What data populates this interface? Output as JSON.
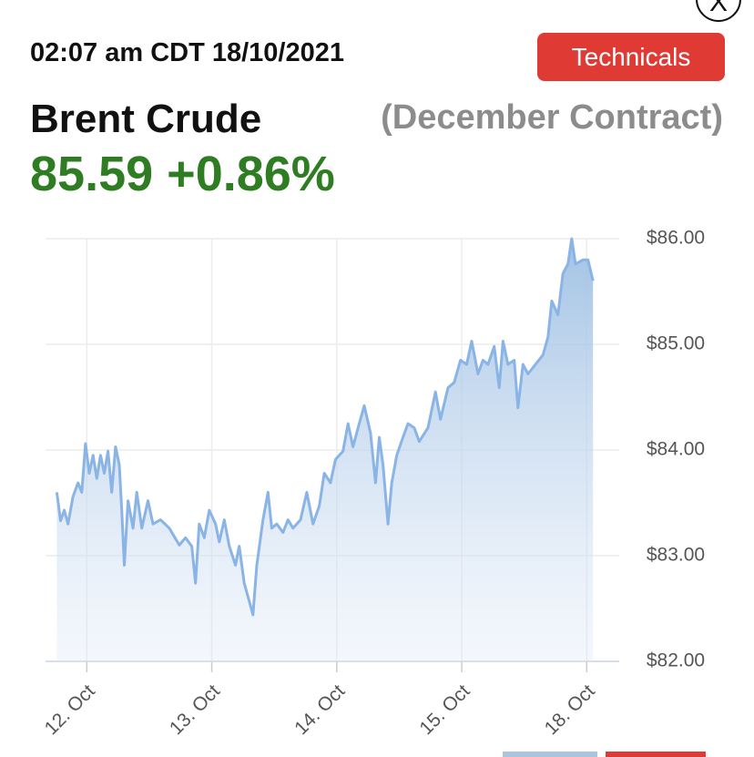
{
  "header": {
    "timestamp": "02:07 am CDT 18/10/2021",
    "button": "Technicals",
    "close": "X",
    "name": "Brent Crude",
    "contract": "(December Contract)",
    "price": "85.59",
    "change": "+0.86%"
  },
  "chart_data": {
    "type": "area",
    "color": "#8ab4e6",
    "grid": true,
    "xlim": [
      -0.33,
      4.26
    ],
    "xticks": [
      {
        "value": 0,
        "label": "12. Oct"
      },
      {
        "value": 1,
        "label": "13. Oct"
      },
      {
        "value": 2,
        "label": "14. Oct"
      },
      {
        "value": 3,
        "label": "15. Oct"
      },
      {
        "value": 4,
        "label": "18. Oct"
      }
    ],
    "ylim": [
      82,
      86
    ],
    "yticks": [
      {
        "value": 82,
        "label": "$82.00"
      },
      {
        "value": 83,
        "label": "$83.00"
      },
      {
        "value": 84,
        "label": "$84.00"
      },
      {
        "value": 85,
        "label": "$85.00"
      },
      {
        "value": 86,
        "label": "$86.00"
      }
    ],
    "x": [
      -0.24,
      -0.21,
      -0.18,
      -0.15,
      -0.11,
      -0.07,
      -0.04,
      -0.01,
      0.02,
      0.05,
      0.08,
      0.11,
      0.14,
      0.17,
      0.2,
      0.23,
      0.26,
      0.28,
      0.3,
      0.33,
      0.37,
      0.4,
      0.44,
      0.49,
      0.53,
      0.59,
      0.66,
      0.74,
      0.79,
      0.84,
      0.87,
      0.9,
      0.94,
      0.98,
      1.03,
      1.06,
      1.1,
      1.14,
      1.19,
      1.22,
      1.26,
      1.3,
      1.33,
      1.36,
      1.41,
      1.45,
      1.48,
      1.52,
      1.57,
      1.61,
      1.65,
      1.71,
      1.76,
      1.81,
      1.86,
      1.9,
      1.95,
      1.99,
      2.05,
      2.09,
      2.13,
      2.18,
      2.22,
      2.27,
      2.31,
      2.34,
      2.37,
      2.41,
      2.44,
      2.48,
      2.53,
      2.57,
      2.62,
      2.66,
      2.73,
      2.79,
      2.83,
      2.89,
      2.94,
      2.99,
      3.04,
      3.08,
      3.13,
      3.17,
      3.21,
      3.26,
      3.3,
      3.33,
      3.37,
      3.42,
      3.45,
      3.49,
      3.53,
      3.59,
      3.65,
      3.69,
      3.72,
      3.77,
      3.81,
      3.85,
      3.88,
      3.91,
      3.97,
      4.01,
      4.05
    ],
    "values": [
      83.6,
      83.33,
      83.43,
      83.3,
      83.56,
      83.69,
      83.6,
      84.06,
      83.78,
      83.95,
      83.73,
      83.95,
      83.78,
      83.99,
      83.6,
      84.03,
      83.86,
      83.43,
      82.91,
      83.52,
      83.26,
      83.6,
      83.26,
      83.52,
      83.3,
      83.34,
      83.26,
      83.1,
      83.17,
      83.09,
      82.74,
      83.3,
      83.17,
      83.43,
      83.3,
      83.13,
      83.34,
      83.09,
      82.91,
      83.09,
      82.74,
      82.57,
      82.44,
      82.91,
      83.34,
      83.6,
      83.26,
      83.3,
      83.22,
      83.34,
      83.26,
      83.34,
      83.6,
      83.3,
      83.47,
      83.78,
      83.69,
      83.91,
      83.99,
      84.25,
      84.03,
      84.25,
      84.42,
      84.16,
      83.69,
      84.12,
      83.86,
      83.3,
      83.69,
      83.95,
      84.12,
      84.25,
      84.21,
      84.08,
      84.21,
      84.55,
      84.29,
      84.59,
      84.64,
      84.85,
      84.81,
      85.03,
      84.72,
      84.85,
      84.81,
      84.98,
      84.59,
      85.03,
      84.81,
      84.85,
      84.4,
      84.81,
      84.72,
      84.81,
      84.9,
      85.07,
      85.41,
      85.28,
      85.67,
      85.76,
      86.0,
      85.76,
      85.8,
      85.8,
      85.6
    ]
  }
}
